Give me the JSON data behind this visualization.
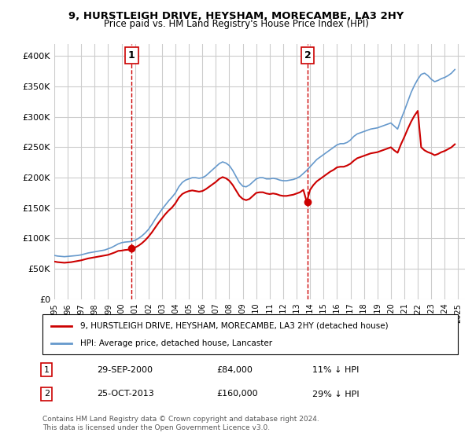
{
  "title": "9, HURSTLEIGH DRIVE, HEYSHAM, MORECAMBE, LA3 2HY",
  "subtitle": "Price paid vs. HM Land Registry's House Price Index (HPI)",
  "ylabel_ticks": [
    "£0",
    "£50K",
    "£100K",
    "£150K",
    "£200K",
    "£250K",
    "£300K",
    "£350K",
    "£400K"
  ],
  "ytick_values": [
    0,
    50000,
    100000,
    150000,
    200000,
    250000,
    300000,
    350000,
    400000
  ],
  "ylim": [
    0,
    420000
  ],
  "xlim_start": 1995.0,
  "xlim_end": 2025.5,
  "sale1_year": 2000.75,
  "sale1_price": 84000,
  "sale1_label": "1",
  "sale2_year": 2013.82,
  "sale2_price": 160000,
  "sale2_label": "2",
  "red_line_color": "#cc0000",
  "blue_line_color": "#6699cc",
  "sale_marker_color": "#cc0000",
  "vline_color": "#cc0000",
  "grid_color": "#cccccc",
  "background_color": "#ffffff",
  "legend_label_red": "9, HURSTLEIGH DRIVE, HEYSHAM, MORECAMBE, LA3 2HY (detached house)",
  "legend_label_blue": "HPI: Average price, detached house, Lancaster",
  "annotation1_date": "29-SEP-2000",
  "annotation1_price": "£84,000",
  "annotation1_hpi": "11% ↓ HPI",
  "annotation2_date": "25-OCT-2013",
  "annotation2_price": "£160,000",
  "annotation2_hpi": "29% ↓ HPI",
  "footer": "Contains HM Land Registry data © Crown copyright and database right 2024.\nThis data is licensed under the Open Government Licence v3.0.",
  "hpi_data": {
    "years": [
      1995.0,
      1995.25,
      1995.5,
      1995.75,
      1996.0,
      1996.25,
      1996.5,
      1996.75,
      1997.0,
      1997.25,
      1997.5,
      1997.75,
      1998.0,
      1998.25,
      1998.5,
      1998.75,
      1999.0,
      1999.25,
      1999.5,
      1999.75,
      2000.0,
      2000.25,
      2000.5,
      2000.75,
      2001.0,
      2001.25,
      2001.5,
      2001.75,
      2002.0,
      2002.25,
      2002.5,
      2002.75,
      2003.0,
      2003.25,
      2003.5,
      2003.75,
      2004.0,
      2004.25,
      2004.5,
      2004.75,
      2005.0,
      2005.25,
      2005.5,
      2005.75,
      2006.0,
      2006.25,
      2006.5,
      2006.75,
      2007.0,
      2007.25,
      2007.5,
      2007.75,
      2008.0,
      2008.25,
      2008.5,
      2008.75,
      2009.0,
      2009.25,
      2009.5,
      2009.75,
      2010.0,
      2010.25,
      2010.5,
      2010.75,
      2011.0,
      2011.25,
      2011.5,
      2011.75,
      2012.0,
      2012.25,
      2012.5,
      2012.75,
      2013.0,
      2013.25,
      2013.5,
      2013.75,
      2014.0,
      2014.25,
      2014.5,
      2014.75,
      2015.0,
      2015.25,
      2015.5,
      2015.75,
      2016.0,
      2016.25,
      2016.5,
      2016.75,
      2017.0,
      2017.25,
      2017.5,
      2017.75,
      2018.0,
      2018.25,
      2018.5,
      2018.75,
      2019.0,
      2019.25,
      2019.5,
      2019.75,
      2020.0,
      2020.25,
      2020.5,
      2020.75,
      2021.0,
      2021.25,
      2021.5,
      2021.75,
      2022.0,
      2022.25,
      2022.5,
      2022.75,
      2023.0,
      2023.25,
      2023.5,
      2023.75,
      2024.0,
      2024.25,
      2024.5,
      2024.75
    ],
    "values": [
      72000,
      71000,
      70500,
      70000,
      70500,
      71000,
      71500,
      72000,
      73000,
      74500,
      76000,
      77000,
      78000,
      79000,
      80000,
      81000,
      83000,
      85000,
      88000,
      91000,
      93000,
      94000,
      94500,
      95000,
      97000,
      100000,
      104000,
      109000,
      115000,
      123000,
      132000,
      140000,
      148000,
      155000,
      162000,
      168000,
      175000,
      185000,
      192000,
      196000,
      198000,
      200000,
      200000,
      199000,
      200000,
      203000,
      208000,
      213000,
      218000,
      223000,
      226000,
      224000,
      220000,
      212000,
      202000,
      192000,
      186000,
      185000,
      188000,
      193000,
      198000,
      200000,
      200000,
      198000,
      198000,
      199000,
      198000,
      196000,
      195000,
      195000,
      196000,
      197000,
      199000,
      202000,
      207000,
      212000,
      218000,
      224000,
      230000,
      234000,
      238000,
      242000,
      246000,
      250000,
      254000,
      256000,
      256000,
      258000,
      262000,
      268000,
      272000,
      274000,
      276000,
      278000,
      280000,
      281000,
      282000,
      284000,
      286000,
      288000,
      290000,
      285000,
      280000,
      296000,
      310000,
      325000,
      340000,
      352000,
      362000,
      370000,
      372000,
      368000,
      362000,
      358000,
      360000,
      363000,
      365000,
      368000,
      372000,
      378000
    ]
  },
  "price_paid_data": {
    "years": [
      1995.0,
      1995.25,
      1995.5,
      1995.75,
      1996.0,
      1996.25,
      1996.5,
      1996.75,
      1997.0,
      1997.25,
      1997.5,
      1997.75,
      1998.0,
      1998.25,
      1998.5,
      1998.75,
      1999.0,
      1999.25,
      1999.5,
      1999.75,
      2000.0,
      2000.25,
      2000.5,
      2000.75,
      2001.0,
      2001.25,
      2001.5,
      2001.75,
      2002.0,
      2002.25,
      2002.5,
      2002.75,
      2003.0,
      2003.25,
      2003.5,
      2003.75,
      2004.0,
      2004.25,
      2004.5,
      2004.75,
      2005.0,
      2005.25,
      2005.5,
      2005.75,
      2006.0,
      2006.25,
      2006.5,
      2006.75,
      2007.0,
      2007.25,
      2007.5,
      2007.75,
      2008.0,
      2008.25,
      2008.5,
      2008.75,
      2009.0,
      2009.25,
      2009.5,
      2009.75,
      2010.0,
      2010.25,
      2010.5,
      2010.75,
      2011.0,
      2011.25,
      2011.5,
      2011.75,
      2012.0,
      2012.25,
      2012.5,
      2012.75,
      2013.0,
      2013.25,
      2013.5,
      2013.75,
      2014.0,
      2014.25,
      2014.5,
      2014.75,
      2015.0,
      2015.25,
      2015.5,
      2015.75,
      2016.0,
      2016.25,
      2016.5,
      2016.75,
      2017.0,
      2017.25,
      2017.5,
      2017.75,
      2018.0,
      2018.25,
      2018.5,
      2018.75,
      2019.0,
      2019.25,
      2019.5,
      2019.75,
      2020.0,
      2020.25,
      2020.5,
      2020.75,
      2021.0,
      2021.25,
      2021.5,
      2021.75,
      2022.0,
      2022.25,
      2022.5,
      2022.75,
      2023.0,
      2023.25,
      2023.5,
      2023.75,
      2024.0,
      2024.25,
      2024.5,
      2024.75
    ],
    "values": [
      62000,
      61000,
      60500,
      60000,
      60500,
      61000,
      62000,
      63000,
      64000,
      65500,
      67000,
      68000,
      69000,
      70000,
      71000,
      72000,
      73000,
      75000,
      77000,
      79500,
      80000,
      81000,
      81500,
      84000,
      85000,
      88000,
      92000,
      97000,
      103000,
      110000,
      118000,
      126000,
      133000,
      140000,
      146000,
      151000,
      158000,
      167000,
      173000,
      176000,
      178000,
      179000,
      178000,
      177000,
      178000,
      181000,
      185000,
      189000,
      193000,
      198000,
      201000,
      199000,
      195000,
      188000,
      179000,
      170000,
      165000,
      163000,
      165000,
      170000,
      175000,
      176000,
      176000,
      174000,
      173000,
      174000,
      173000,
      171000,
      170000,
      170000,
      171000,
      172000,
      174000,
      176000,
      180000,
      160000,
      180000,
      188000,
      194000,
      198000,
      202000,
      206000,
      210000,
      213000,
      217000,
      218000,
      218000,
      220000,
      223000,
      228000,
      232000,
      234000,
      236000,
      238000,
      240000,
      241000,
      242000,
      244000,
      246000,
      248000,
      250000,
      245000,
      241000,
      255000,
      267000,
      280000,
      292000,
      302000,
      310000,
      250000,
      245000,
      242000,
      240000,
      237000,
      239000,
      242000,
      244000,
      247000,
      250000,
      255000
    ]
  }
}
